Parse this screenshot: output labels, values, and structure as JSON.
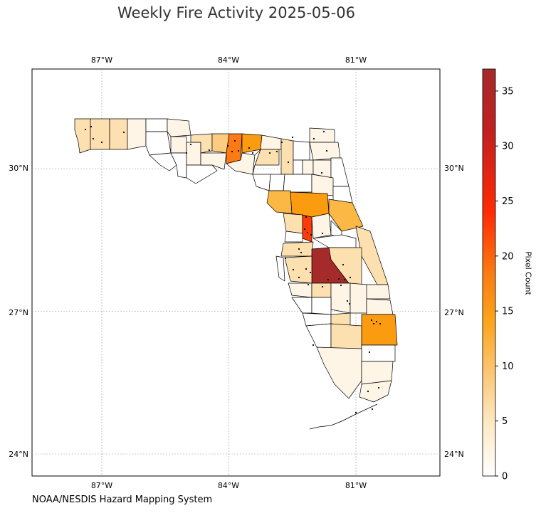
{
  "title": "Weekly Fire Activity 2025-05-06",
  "footer": "NOAA/NESDIS Hazard Mapping System",
  "colorbar": {
    "label": "Pixel Count",
    "min": 0,
    "max": 37,
    "ticks": [
      "0",
      "5",
      "10",
      "15",
      "20",
      "25",
      "30",
      "35"
    ],
    "tick_values": [
      0,
      5,
      10,
      15,
      20,
      25,
      30,
      35
    ],
    "colors": [
      "#ffffff",
      "#fde9c4",
      "#fcc26a",
      "#fca41a",
      "#fb7a10",
      "#ff2a05",
      "#c02020",
      "#a52a2a"
    ]
  },
  "axes": {
    "lon_range": [
      -88.6,
      -79.0
    ],
    "lat_range": [
      23.5,
      31.9
    ],
    "lon_ticks": [
      "87°W",
      "84°W",
      "81°W"
    ],
    "lon_tick_values": [
      -87,
      -84,
      -81
    ],
    "lat_ticks": [
      "30°N",
      "27°N",
      "24°N"
    ],
    "lat_tick_values": [
      30,
      27,
      24
    ],
    "grid": true
  },
  "map": {
    "region": "Florida",
    "outline_color": "#000000",
    "fill_colors": {
      "none": "#ffffff",
      "very_low": "#fef5e6",
      "low": "#fde0b0",
      "mid_low": "#fccc80",
      "mid": "#fbb845",
      "high": "#fb9b10",
      "very_high": "#fc7a14",
      "extreme": "#ff3b0a",
      "max": "#a52a2a"
    }
  }
}
